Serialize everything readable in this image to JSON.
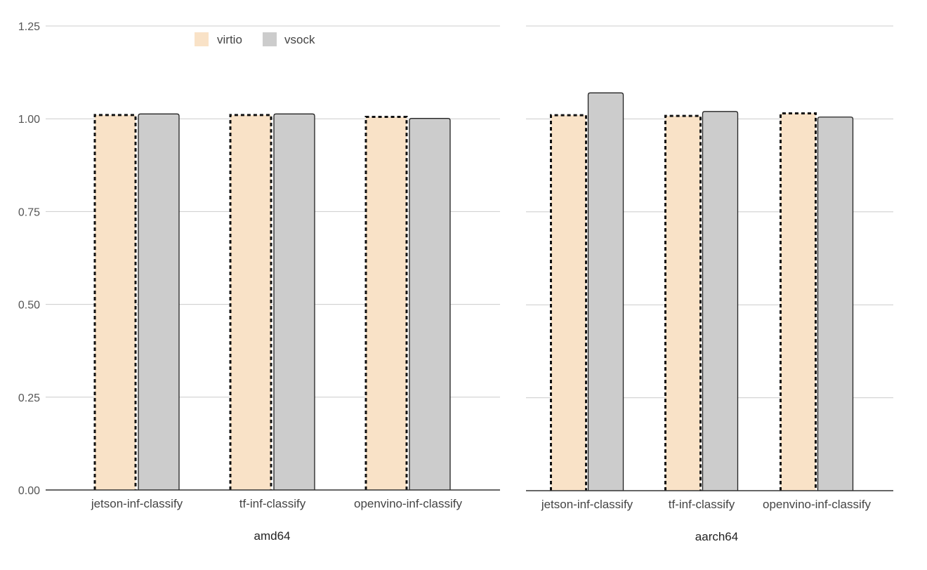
{
  "chart_data": [
    {
      "type": "bar",
      "xlabel": "amd64",
      "ylabel": "",
      "ylim": [
        0,
        1.25
      ],
      "yticks": [
        "0.00",
        "0.25",
        "0.50",
        "0.75",
        "1.00",
        "1.25"
      ],
      "grid": true,
      "legend": "top",
      "categories": [
        "jetson-inf-classify",
        "tf-inf-classify",
        "openvino-inf-classify"
      ],
      "series": [
        {
          "name": "virtio",
          "values": [
            1.01,
            1.01,
            1.005
          ],
          "color": "#f9e2c7",
          "border": "dashed"
        },
        {
          "name": "vsock",
          "values": [
            1.013,
            1.013,
            1.001
          ],
          "color": "#cccccc",
          "border": "solid"
        }
      ]
    },
    {
      "type": "bar",
      "xlabel": "aarch64",
      "ylabel": "",
      "ylim": [
        0,
        1.25
      ],
      "grid": true,
      "categories": [
        "jetson-inf-classify",
        "tf-inf-classify",
        "openvino-inf-classify"
      ],
      "series": [
        {
          "name": "virtio",
          "values": [
            1.01,
            1.008,
            1.015
          ],
          "color": "#f9e2c7",
          "border": "dashed"
        },
        {
          "name": "vsock",
          "values": [
            1.07,
            1.02,
            1.005
          ],
          "color": "#cccccc",
          "border": "solid"
        }
      ]
    }
  ]
}
